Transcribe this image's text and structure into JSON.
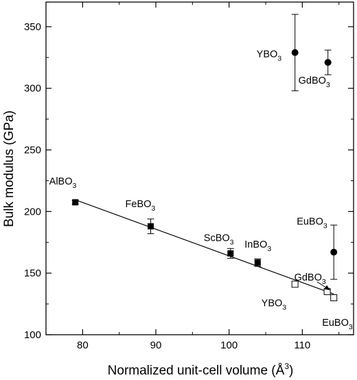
{
  "chart_data": {
    "type": "scatter",
    "xlabel": "Normalized unit-cell volume (Å³)",
    "ylabel": "Bulk modulus (GPa)",
    "xlim": [
      75,
      117
    ],
    "ylim": [
      100,
      370
    ],
    "xticks": [
      80,
      90,
      100,
      110
    ],
    "yticks": [
      100,
      150,
      200,
      250,
      300,
      350
    ],
    "series": [
      {
        "marker": "filled-square",
        "points": [
          {
            "label": "AlBO3",
            "x": 79.0,
            "y": 207.5,
            "err": 1.5
          },
          {
            "label": "FeBO3",
            "x": 89.3,
            "y": 188.0,
            "err": 6.0
          },
          {
            "label": "ScBO3",
            "x": 100.2,
            "y": 166.0,
            "err": 4.0
          },
          {
            "label": "InBO3",
            "x": 103.9,
            "y": 158.5,
            "err": 3.0
          }
        ]
      },
      {
        "marker": "open-square",
        "points": [
          {
            "label": "YBO3",
            "x": 109.0,
            "y": 141.0
          },
          {
            "label": "GdBO3",
            "x": 113.4,
            "y": 135.0
          },
          {
            "label": "EuBO3",
            "x": 114.3,
            "y": 130.0
          }
        ]
      },
      {
        "marker": "filled-circle",
        "points": [
          {
            "label": "YBO3",
            "x": 109.0,
            "y": 329.0,
            "err": 31.0
          },
          {
            "label": "GdBO3",
            "x": 113.5,
            "y": 321.0,
            "err": 10.0
          },
          {
            "label": "EuBO3",
            "x": 114.3,
            "y": 167.0,
            "err": 22.0
          }
        ]
      }
    ],
    "fit_line": {
      "x": [
        79.0,
        114.3
      ],
      "y": [
        209.5,
        133.0
      ]
    },
    "arrow": {
      "from": [
        112.0,
        143.0
      ],
      "to": [
        113.8,
        136.2
      ]
    }
  }
}
